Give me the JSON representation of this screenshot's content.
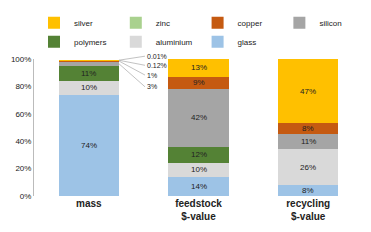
{
  "chart_data": {
    "type": "bar",
    "stacked": true,
    "data_labels": true,
    "legend": "top",
    "grid": false,
    "categories": [
      "mass",
      "feedstock $-value",
      "recycling $-value"
    ],
    "ylim": [
      0,
      100
    ],
    "yticks": [
      {
        "value": 0,
        "label": "0%"
      },
      {
        "value": 20,
        "label": "20%"
      },
      {
        "value": 40,
        "label": "40%"
      },
      {
        "value": 60,
        "label": "60%"
      },
      {
        "value": 80,
        "label": "80%"
      },
      {
        "value": 100,
        "label": "100%"
      }
    ],
    "series": [
      {
        "name": "glass",
        "color": "#9dc3e6",
        "values": [
          74,
          14,
          8
        ],
        "value_labels": [
          "74%",
          "14%",
          "8%"
        ]
      },
      {
        "name": "aluminium",
        "color": "#d9d9d9",
        "values": [
          10,
          10,
          26
        ],
        "value_labels": [
          "10%",
          "10%",
          "26%"
        ]
      },
      {
        "name": "polymers",
        "color": "#548235",
        "values": [
          11,
          12,
          null
        ],
        "value_labels": [
          "11%",
          "12%",
          null
        ]
      },
      {
        "name": "silicon",
        "color": "#a5a5a5",
        "values": [
          3,
          42,
          11
        ],
        "value_labels": [
          "3%",
          "42%",
          "11%"
        ]
      },
      {
        "name": "copper",
        "color": "#c55a11",
        "values": [
          1,
          9,
          8
        ],
        "value_labels": [
          "1%",
          "9%",
          "8%"
        ]
      },
      {
        "name": "zinc",
        "color": "#a9d18e",
        "values": [
          0.12,
          null,
          null
        ],
        "value_labels": [
          "0.12%",
          null,
          null
        ]
      },
      {
        "name": "silver",
        "color": "#ffc000",
        "values": [
          0.01,
          13,
          47
        ],
        "value_labels": [
          "0.01%",
          "13%",
          "47%"
        ]
      }
    ]
  }
}
